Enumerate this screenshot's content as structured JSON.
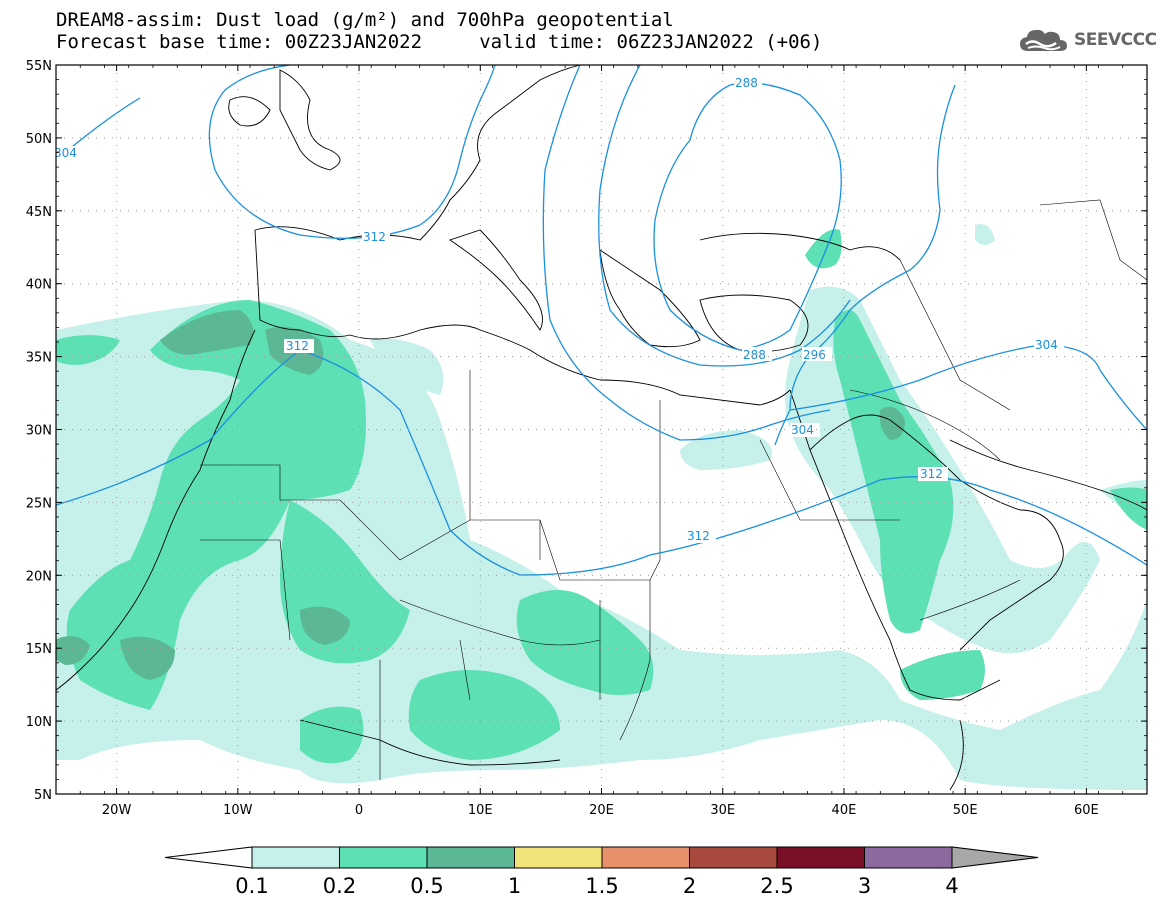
{
  "header": {
    "line1": "DREAM8-assim: Dust load (g/m²) and 700hPa geopotential",
    "line2": "Forecast base time: 00Z23JAN2022     valid time: 06Z23JAN2022 (+06)"
  },
  "logo": {
    "text": "SEEVCCC",
    "icon": "cloud-logo-icon"
  },
  "axes": {
    "lat_labels": [
      "55N",
      "50N",
      "45N",
      "40N",
      "35N",
      "30N",
      "25N",
      "20N",
      "15N",
      "10N",
      "5N"
    ],
    "lon_labels": [
      "20W",
      "10W",
      "0",
      "10E",
      "20E",
      "30E",
      "40E",
      "50E",
      "60E"
    ],
    "lat_range": [
      5,
      55
    ],
    "lon_range": [
      -25,
      65
    ]
  },
  "contours": {
    "color": "#1a90e0",
    "labels": [
      "288",
      "304",
      "312",
      "312",
      "296",
      "288",
      "304",
      "312",
      "304",
      "312"
    ],
    "levels_gpdam": [
      288,
      296,
      304,
      312
    ]
  },
  "dust_levels": {
    "colors": [
      "#c6f0ea",
      "#5de0b4",
      "#5cb894"
    ]
  },
  "colorbar": {
    "labels": [
      "0.1",
      "0.2",
      "0.5",
      "1",
      "1.5",
      "2",
      "2.5",
      "3",
      "4"
    ],
    "colors": [
      "#c6f0ea",
      "#5de0b4",
      "#5cb894",
      "#f0e37a",
      "#e8906a",
      "#a84a3e",
      "#7a1028",
      "#8c6aa0"
    ],
    "under_color": "#ffffff",
    "over_color": "#a8a8a8"
  }
}
